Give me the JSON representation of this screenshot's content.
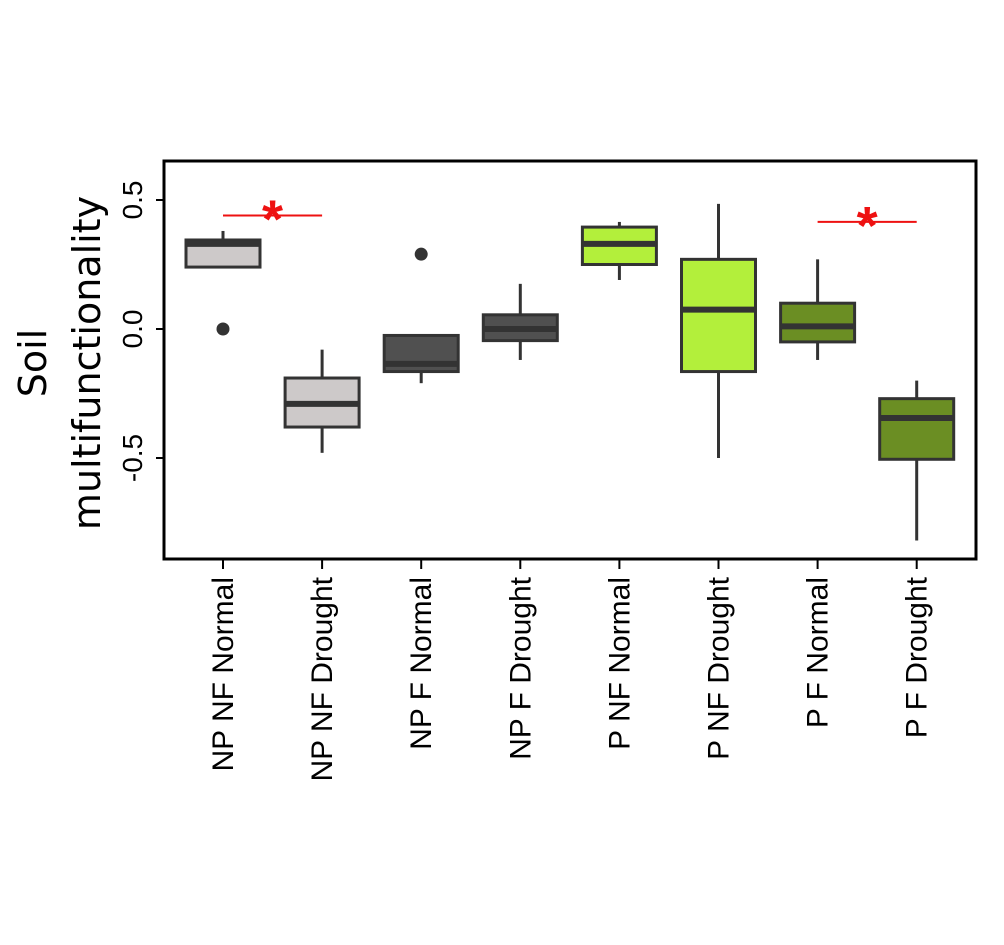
{
  "chart_data": {
    "type": "boxplot",
    "ylabel": [
      "Soil",
      "multifunctionality"
    ],
    "ylim": [
      -0.9,
      0.65
    ],
    "yticks": [
      0.5,
      0.0,
      -0.5
    ],
    "ytick_labels": [
      "0.5",
      "0.0",
      "-0.5"
    ],
    "grid": false,
    "categories": [
      "NP NF Normal",
      "NP NF Drought",
      "NP F Normal",
      "NP F Drought",
      "P NF Normal",
      "P NF Drought",
      "P F Normal",
      "P F Drought"
    ],
    "boxes": [
      {
        "category": "NP NF Normal",
        "whisker_low": 0.24,
        "q1": 0.24,
        "median": 0.33,
        "q3": 0.345,
        "whisker_high": 0.38,
        "outliers": [
          0.0
        ],
        "color": "#cdc9c9"
      },
      {
        "category": "NP NF Drought",
        "whisker_low": -0.48,
        "q1": -0.38,
        "median": -0.29,
        "q3": -0.19,
        "whisker_high": -0.08,
        "outliers": [],
        "color": "#cdc9c9"
      },
      {
        "category": "NP F Normal",
        "whisker_low": -0.21,
        "q1": -0.165,
        "median": -0.135,
        "q3": -0.025,
        "whisker_high": -0.025,
        "outliers": [
          0.29
        ],
        "color": "#505050"
      },
      {
        "category": "NP F Drought",
        "whisker_low": -0.12,
        "q1": -0.045,
        "median": 0.0,
        "q3": 0.055,
        "whisker_high": 0.175,
        "outliers": [],
        "color": "#505050"
      },
      {
        "category": "P NF Normal",
        "whisker_low": 0.19,
        "q1": 0.25,
        "median": 0.33,
        "q3": 0.395,
        "whisker_high": 0.415,
        "outliers": [],
        "color": "#b3ef3b"
      },
      {
        "category": "P NF Drought",
        "whisker_low": -0.5,
        "q1": -0.165,
        "median": 0.075,
        "q3": 0.27,
        "whisker_high": 0.485,
        "outliers": [],
        "color": "#b3ef3b"
      },
      {
        "category": "P F Normal",
        "whisker_low": -0.12,
        "q1": -0.05,
        "median": 0.01,
        "q3": 0.1,
        "whisker_high": 0.27,
        "outliers": [],
        "color": "#6b8e23"
      },
      {
        "category": "P F Drought",
        "whisker_low": -0.82,
        "q1": -0.505,
        "median": -0.345,
        "q3": -0.27,
        "whisker_high": -0.2,
        "outliers": [],
        "color": "#6b8e23"
      }
    ],
    "significance": [
      {
        "from": "NP NF Normal",
        "to": "NP NF Drought",
        "label": "*",
        "y": 0.44
      },
      {
        "from": "P F Normal",
        "to": "P F Drought",
        "label": "*",
        "y": 0.415
      }
    ],
    "significance_color": "#ee1111"
  }
}
